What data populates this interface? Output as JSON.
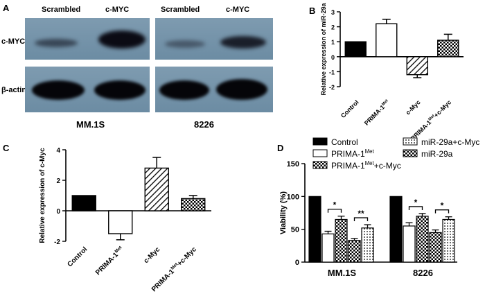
{
  "panel_a": {
    "label": "A",
    "headers": [
      "Scrambled",
      "c-MYC",
      "Scrambled",
      "c-MYC"
    ],
    "rows": [
      "c-MYC",
      "β-actin"
    ],
    "cell_lines": [
      "MM.1S",
      "8226"
    ]
  },
  "panel_b": {
    "label": "B"
  },
  "panel_c": {
    "label": "C"
  },
  "panel_d": {
    "label": "D"
  },
  "chart_data": [
    {
      "panel": "B",
      "type": "bar",
      "categories": [
        "Control",
        "PRIMA-1Met",
        "c-Myc",
        "PRIMA-1Met+c-Myc"
      ],
      "values": [
        1.0,
        2.2,
        -1.2,
        1.1
      ],
      "errors": [
        0.0,
        0.3,
        0.2,
        0.4
      ],
      "fills": [
        "solid",
        "white",
        "hatch",
        "checker"
      ],
      "ylabel": "Relative expression of miR-29a",
      "ylim": [
        -2,
        3
      ],
      "yticks": [
        -2,
        -1,
        0,
        1,
        2,
        3
      ]
    },
    {
      "panel": "C",
      "type": "bar",
      "categories": [
        "Control",
        "PRIMA-1Met",
        "c-Myc",
        "PRIMA-1Met+c-Myc"
      ],
      "values": [
        1.0,
        -1.5,
        2.8,
        0.8
      ],
      "errors": [
        0.0,
        0.4,
        0.7,
        0.2
      ],
      "fills": [
        "solid",
        "white",
        "hatch",
        "checker"
      ],
      "ylabel": "Relative expression of c-Myc",
      "ylim": [
        -2,
        4
      ],
      "yticks": [
        -2,
        0,
        2,
        4
      ]
    },
    {
      "panel": "D",
      "type": "bar",
      "categories": [
        "MM.1S",
        "8226"
      ],
      "series": [
        {
          "name": "Control",
          "fill": "solid",
          "values": [
            100,
            100
          ],
          "errors": [
            0,
            0
          ]
        },
        {
          "name": "PRIMA-1Met",
          "fill": "white",
          "values": [
            43,
            55
          ],
          "errors": [
            4,
            5
          ]
        },
        {
          "name": "PRIMA-1Met+c-Myc",
          "fill": "checker",
          "values": [
            65,
            70
          ],
          "errors": [
            5,
            4
          ]
        },
        {
          "name": "miR-29a",
          "fill": "checker",
          "values": [
            33,
            45
          ],
          "errors": [
            3,
            4
          ]
        },
        {
          "name": "miR-29a+c-Myc",
          "fill": "dots",
          "values": [
            52,
            65
          ],
          "errors": [
            5,
            4
          ]
        }
      ],
      "ylabel": "Viability (%)",
      "ylim": [
        0,
        150
      ],
      "yticks": [
        0,
        50,
        100,
        150
      ],
      "significance": [
        {
          "group": "MM.1S",
          "from_series": 1,
          "to_series": 2,
          "label": "*"
        },
        {
          "group": "MM.1S",
          "from_series": 3,
          "to_series": 4,
          "label": "**"
        },
        {
          "group": "8226",
          "from_series": 1,
          "to_series": 2,
          "label": "*"
        },
        {
          "group": "8226",
          "from_series": 3,
          "to_series": 4,
          "label": "*"
        }
      ]
    }
  ]
}
